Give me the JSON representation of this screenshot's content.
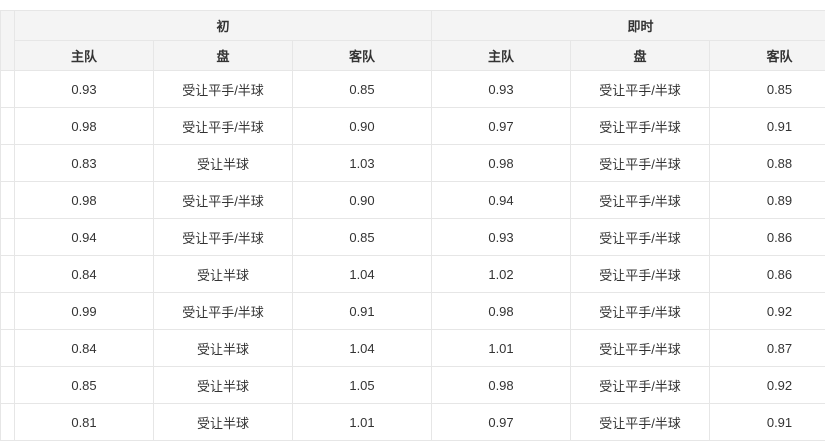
{
  "groups": [
    "初",
    "即时"
  ],
  "columns": [
    "主队",
    "盘",
    "客队",
    "主队",
    "盘",
    "客队"
  ],
  "rows": [
    [
      "0.93",
      "受让平手/半球",
      "0.85",
      "0.93",
      "受让平手/半球",
      "0.85"
    ],
    [
      "0.98",
      "受让平手/半球",
      "0.90",
      "0.97",
      "受让平手/半球",
      "0.91"
    ],
    [
      "0.83",
      "受让半球",
      "1.03",
      "0.98",
      "受让平手/半球",
      "0.88"
    ],
    [
      "0.98",
      "受让平手/半球",
      "0.90",
      "0.94",
      "受让平手/半球",
      "0.89"
    ],
    [
      "0.94",
      "受让平手/半球",
      "0.85",
      "0.93",
      "受让平手/半球",
      "0.86"
    ],
    [
      "0.84",
      "受让半球",
      "1.04",
      "1.02",
      "受让平手/半球",
      "0.86"
    ],
    [
      "0.99",
      "受让平手/半球",
      "0.91",
      "0.98",
      "受让平手/半球",
      "0.92"
    ],
    [
      "0.84",
      "受让半球",
      "1.04",
      "1.01",
      "受让平手/半球",
      "0.87"
    ],
    [
      "0.85",
      "受让半球",
      "1.05",
      "0.98",
      "受让平手/半球",
      "0.92"
    ],
    [
      "0.81",
      "受让半球",
      "1.01",
      "0.97",
      "受让平手/半球",
      "0.91"
    ]
  ]
}
